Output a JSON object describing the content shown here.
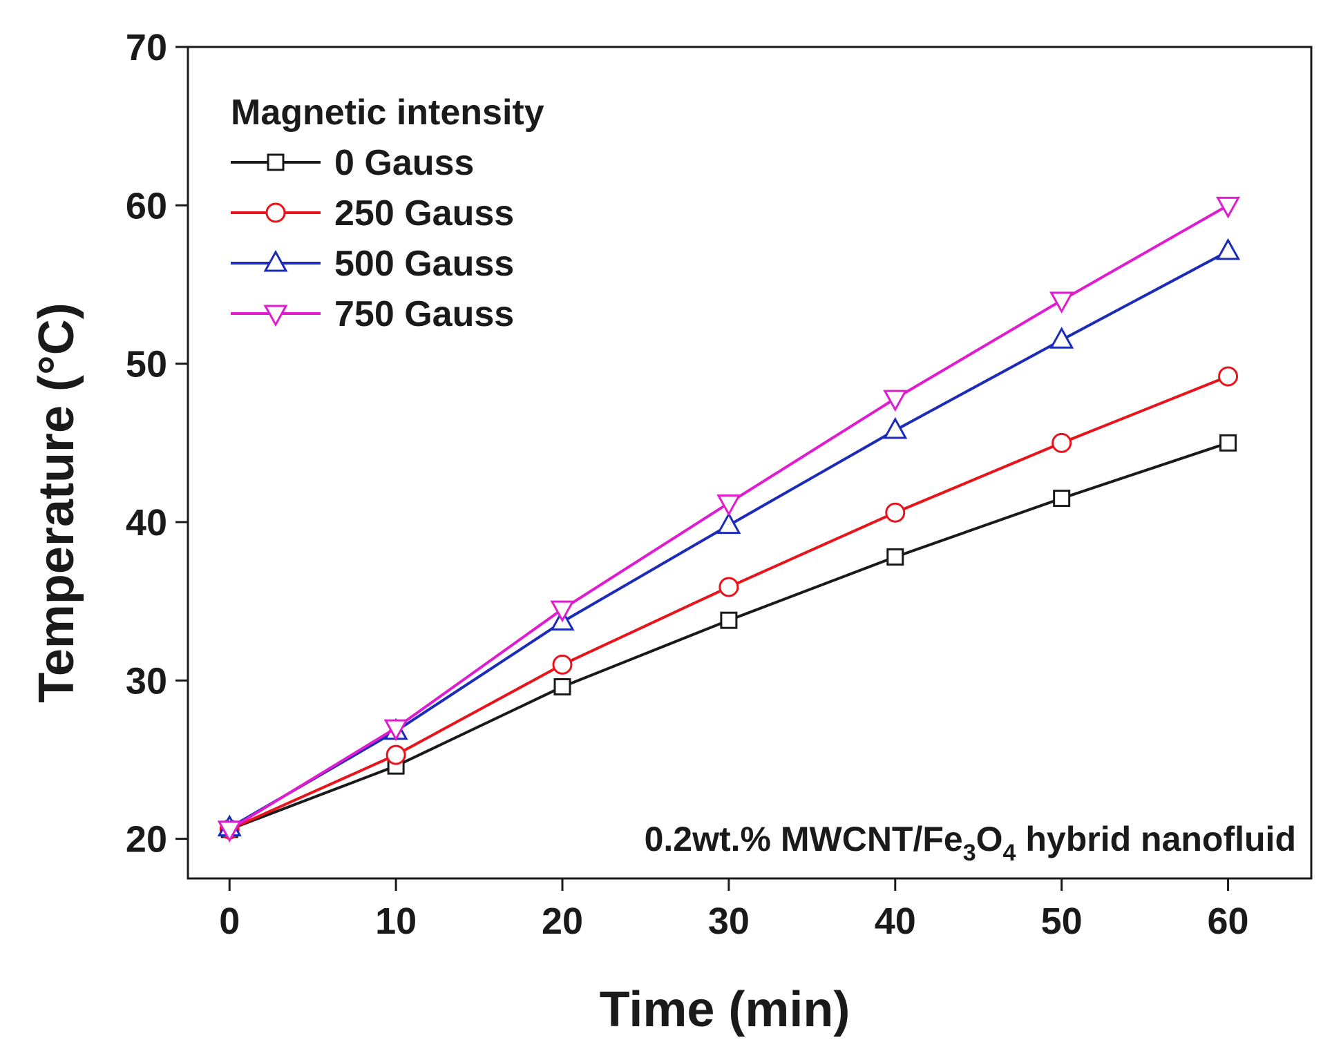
{
  "chart_data": {
    "type": "line",
    "title": "",
    "xlabel": "Time (min)",
    "ylabel": "Temperature (°C)",
    "x": [
      0,
      10,
      20,
      30,
      40,
      50,
      60
    ],
    "xlim": [
      -2.5,
      65
    ],
    "ylim": [
      17.5,
      70
    ],
    "xticks": [
      0,
      10,
      20,
      30,
      40,
      50,
      60
    ],
    "yticks": [
      20,
      30,
      40,
      50,
      60,
      70
    ],
    "grid": false,
    "legend": {
      "title": "Magnetic intensity",
      "position": "top-left"
    },
    "annotation": {
      "text_before": "0.2wt.% MWCNT/Fe",
      "sub1": "3",
      "text_mid": "O",
      "sub2": "4",
      "text_after": " hybrid nanofluid",
      "position": "bottom-right"
    },
    "series": [
      {
        "name": "0 Gauss",
        "color": "#1a1a1a",
        "marker": "square",
        "values": [
          20.6,
          24.6,
          29.6,
          33.8,
          37.8,
          41.5,
          45.0
        ]
      },
      {
        "name": "250 Gauss",
        "color": "#e8141c",
        "marker": "circle",
        "values": [
          20.6,
          25.3,
          31.0,
          35.9,
          40.6,
          45.0,
          49.2
        ]
      },
      {
        "name": "500 Gauss",
        "color": "#1c2bb8",
        "marker": "triangle-up",
        "values": [
          20.7,
          26.8,
          33.7,
          39.8,
          45.8,
          51.5,
          57.1
        ]
      },
      {
        "name": "750 Gauss",
        "color": "#e01ccf",
        "marker": "triangle-down",
        "values": [
          20.6,
          27.0,
          34.5,
          41.2,
          47.8,
          54.0,
          60.0
        ]
      }
    ]
  }
}
